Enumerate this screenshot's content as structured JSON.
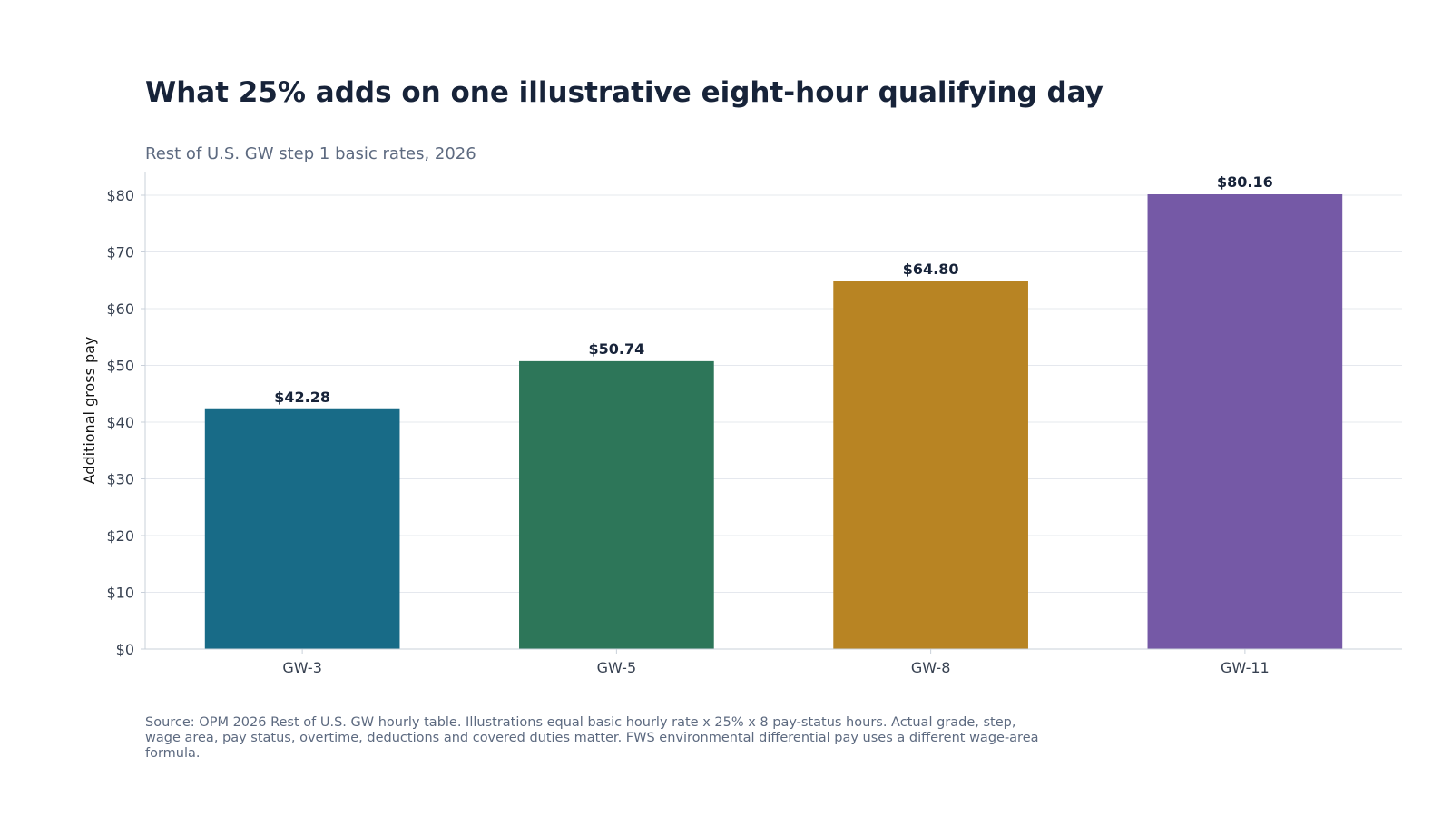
{
  "chart_data": {
    "type": "bar",
    "title": "What 25% adds on one illustrative eight-hour qualifying day",
    "subtitle": "Rest of U.S. GW step 1 basic rates, 2026",
    "xlabel": "",
    "ylabel": "Additional gross pay",
    "categories": [
      "GW-3",
      "GW-5",
      "GW-8",
      "GW-11"
    ],
    "values": [
      42.28,
      50.74,
      64.8,
      80.16
    ],
    "value_labels": [
      "$42.28",
      "$50.74",
      "$64.80",
      "$80.16"
    ],
    "bar_colors": [
      "#186b87",
      "#2d7659",
      "#b88423",
      "#7559a6"
    ],
    "ylim": [
      0,
      84
    ],
    "yticks": [
      0,
      10,
      20,
      30,
      40,
      50,
      60,
      70,
      80
    ],
    "ytick_labels": [
      "$0",
      "$10",
      "$20",
      "$30",
      "$40",
      "$50",
      "$60",
      "$70",
      "$80"
    ],
    "grid": true,
    "legend": "none"
  },
  "source_note": "Source: OPM 2026 Rest of U.S. GW hourly table. Illustrations equal basic hourly rate x 25% x 8 pay-status hours. Actual grade, step, wage area, pay status, overtime, deductions and covered duties matter. FWS environmental differential pay uses a different wage-area formula."
}
